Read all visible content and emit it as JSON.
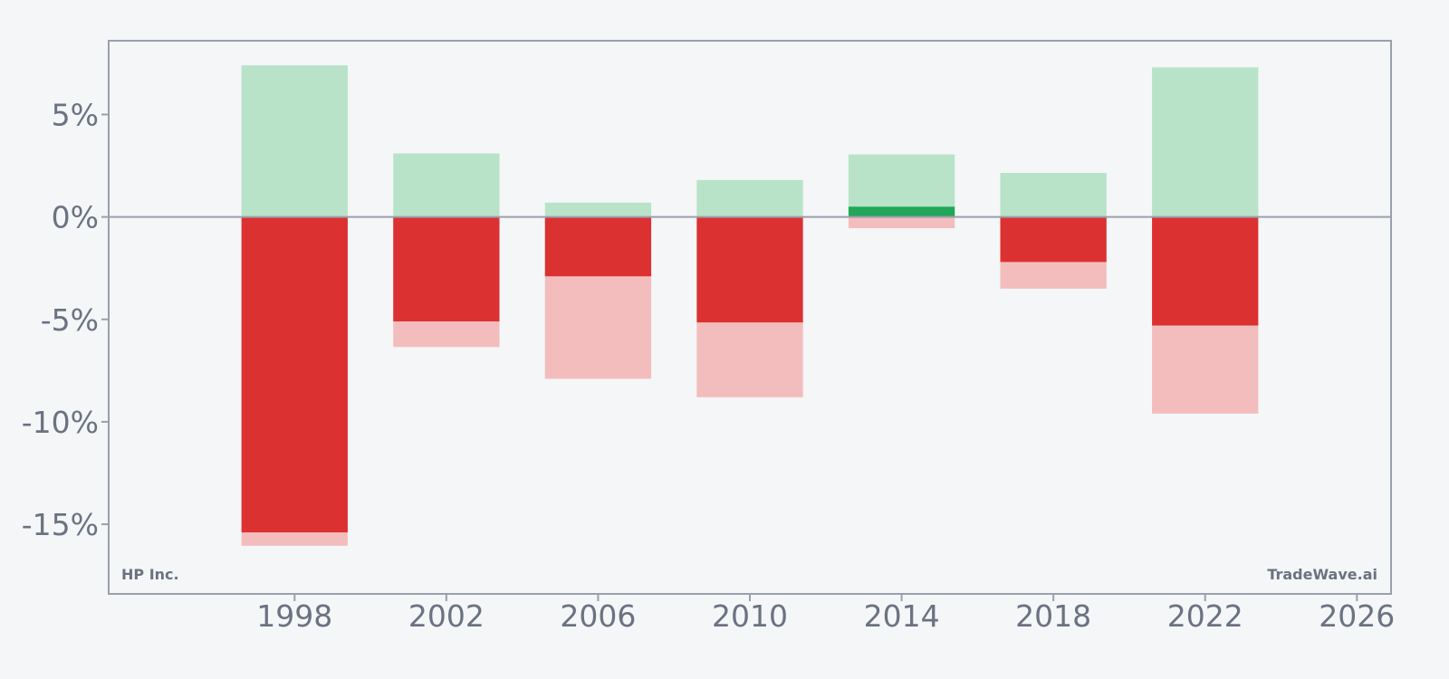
{
  "chart_data": {
    "type": "bar",
    "categories": [
      "1998",
      "2002",
      "2006",
      "2010",
      "2014",
      "2018",
      "2022"
    ],
    "x": [
      1998,
      2002,
      2006,
      2010,
      2014,
      2018,
      2022
    ],
    "series": [
      {
        "values": [
          7.4,
          3.1,
          0.7,
          1.8,
          3.05,
          2.15,
          7.3
        ]
      },
      {
        "values": [
          0,
          0,
          0,
          0,
          0.5,
          0,
          0
        ]
      },
      {
        "values": [
          -15.4,
          -5.1,
          -2.9,
          -5.15,
          0,
          -2.2,
          -5.3
        ]
      },
      {
        "values": [
          -16.05,
          -6.35,
          -7.9,
          -8.8,
          -0.55,
          -3.5,
          -9.6
        ]
      }
    ],
    "xlim": [
      1993.1,
      2026.9
    ],
    "ylim": [
      -18.4,
      8.6
    ],
    "xticks": [
      1998,
      2002,
      2006,
      2010,
      2014,
      2018,
      2022,
      2026
    ],
    "xtick_labels": [
      "1998",
      "2002",
      "2006",
      "2010",
      "2014",
      "2018",
      "2022",
      "2026"
    ],
    "yticks": [
      5,
      0,
      -5,
      -10,
      -15
    ],
    "ytick_labels": [
      "5%",
      "0%",
      "-5%",
      "-10%",
      "-15%"
    ],
    "bar_width_years": 2.8,
    "grid": false,
    "zero_line": true,
    "colors": {
      "background": "#f4f6f8",
      "frame": "#9aa0ab",
      "tick_text": "#6b7280",
      "light_green": "#b8e3c8",
      "dark_green": "#22a75a",
      "dark_red": "#dc3131",
      "light_red": "#f3bdbd"
    },
    "annotations": {
      "company": "HP Inc.",
      "brand": "TradeWave.ai"
    }
  }
}
